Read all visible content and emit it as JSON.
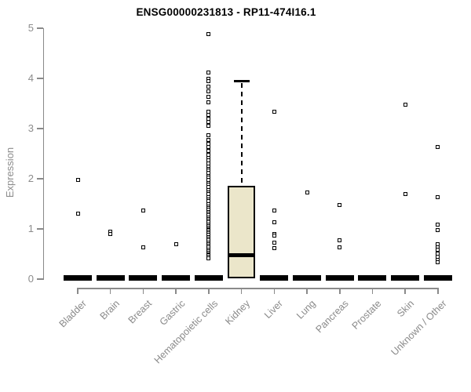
{
  "page": {
    "background": "#ffffff"
  },
  "chart_data": {
    "type": "boxplot",
    "title": "ENSG00000231813 - RP11-474I16.1",
    "ylabel": "Expression",
    "xlabel": "",
    "ylim": [
      0,
      5
    ],
    "yticks": [
      0,
      1,
      2,
      3,
      4,
      5
    ],
    "grid": false,
    "legend": "none",
    "colors": {
      "box_fill": "#EBE6CA",
      "box_border": "#000000",
      "marker_border": "#000000",
      "marker_fill": "#ffffff",
      "axis_line": "#8a8a8a",
      "tick_text": "#8c8c8c",
      "title_text": "#000000"
    },
    "categories": [
      "Bladder",
      "Brain",
      "Breast",
      "Gastric",
      "Hematopoietic cells",
      "Kidney",
      "Liver",
      "Lung",
      "Pancreas",
      "Prostate",
      "Skin",
      "Unknown / Other"
    ],
    "boxes": [
      {
        "category": "Bladder",
        "q1": 0,
        "median": 0,
        "q3": 0,
        "whisker_low": 0,
        "whisker_high": 0,
        "outliers": [
          1.98,
          1.3
        ]
      },
      {
        "category": "Brain",
        "q1": 0,
        "median": 0,
        "q3": 0,
        "whisker_low": 0,
        "whisker_high": 0,
        "outliers": [
          0.94,
          0.9
        ]
      },
      {
        "category": "Breast",
        "q1": 0,
        "median": 0,
        "q3": 0,
        "whisker_low": 0,
        "whisker_high": 0,
        "outliers": [
          1.36,
          0.64
        ]
      },
      {
        "category": "Gastric",
        "q1": 0,
        "median": 0,
        "q3": 0,
        "whisker_low": 0,
        "whisker_high": 0,
        "outliers": [
          0.69
        ]
      },
      {
        "category": "Hematopoietic cells",
        "q1": 0,
        "median": 0,
        "q3": 0,
        "whisker_low": 0,
        "whisker_high": 0,
        "outliers": [
          4.89,
          4.11,
          4.0,
          3.94,
          3.84,
          3.75,
          3.64,
          3.53,
          3.33,
          3.27,
          3.2,
          3.13,
          3.06,
          2.86,
          2.78,
          2.7,
          2.63,
          2.55,
          2.47,
          2.41,
          2.36,
          2.3,
          2.25,
          2.2,
          2.16,
          2.11,
          2.06,
          2.02,
          1.97,
          1.92,
          1.88,
          1.83,
          1.78,
          1.73,
          1.69,
          1.64,
          1.59,
          1.55,
          1.5,
          1.45,
          1.41,
          1.38,
          1.34,
          1.31,
          1.27,
          1.23,
          1.19,
          1.16,
          1.13,
          1.09,
          1.06,
          1.03,
          1.0,
          0.97,
          0.94,
          0.91,
          0.88,
          0.84,
          0.8,
          0.77,
          0.73,
          0.69,
          0.66,
          0.63,
          0.59,
          0.56,
          0.53,
          0.5,
          0.47,
          0.44,
          0.41
        ]
      },
      {
        "category": "Kidney",
        "q1": 0.02,
        "median": 0.47,
        "q3": 1.86,
        "whisker_low": 0.02,
        "whisker_high": 3.95,
        "outliers": []
      },
      {
        "category": "Liver",
        "q1": 0,
        "median": 0,
        "q3": 0,
        "whisker_low": 0,
        "whisker_high": 0,
        "outliers": [
          3.34,
          1.36,
          1.14,
          0.9,
          0.86,
          0.73,
          0.61
        ]
      },
      {
        "category": "Lung",
        "q1": 0,
        "median": 0,
        "q3": 0,
        "whisker_low": 0,
        "whisker_high": 0,
        "outliers": [
          1.73
        ]
      },
      {
        "category": "Pancreas",
        "q1": 0,
        "median": 0,
        "q3": 0,
        "whisker_low": 0,
        "whisker_high": 0,
        "outliers": [
          1.47,
          0.78,
          0.63
        ]
      },
      {
        "category": "Prostate",
        "q1": 0,
        "median": 0,
        "q3": 0,
        "whisker_low": 0,
        "whisker_high": 0,
        "outliers": []
      },
      {
        "category": "Skin",
        "q1": 0,
        "median": 0,
        "q3": 0,
        "whisker_low": 0,
        "whisker_high": 0,
        "outliers": [
          3.47,
          1.7
        ]
      },
      {
        "category": "Unknown / Other",
        "q1": 0,
        "median": 0,
        "q3": 0,
        "whisker_low": 0,
        "whisker_high": 0,
        "outliers": [
          2.63,
          1.63,
          1.09,
          0.97,
          0.7,
          0.64,
          0.58,
          0.51,
          0.45,
          0.39,
          0.33
        ]
      }
    ]
  }
}
